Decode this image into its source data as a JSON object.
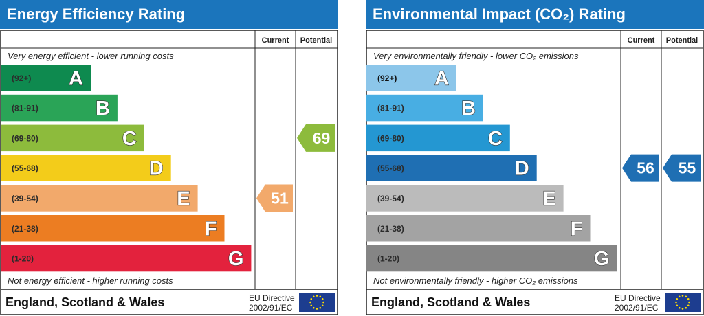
{
  "chart_data": [
    {
      "type": "bar",
      "title": "Energy Efficiency Rating",
      "header_current": "Current",
      "header_potential": "Potential",
      "top_text": "Very energy efficient - lower running costs",
      "bottom_text": "Not energy efficient - higher running costs",
      "footer_country": "England, Scotland & Wales",
      "footer_directive_line1": "EU Directive",
      "footer_directive_line2": "2002/91/EC",
      "bands": [
        {
          "letter": "A",
          "range": "(92+)",
          "color": "#0e8a4f"
        },
        {
          "letter": "B",
          "range": "(81-91)",
          "color": "#2aa457"
        },
        {
          "letter": "C",
          "range": "(69-80)",
          "color": "#8dbb3c"
        },
        {
          "letter": "D",
          "range": "(55-68)",
          "color": "#f3cc1a"
        },
        {
          "letter": "E",
          "range": "(39-54)",
          "color": "#f2a96b"
        },
        {
          "letter": "F",
          "range": "(21-38)",
          "color": "#ec7d22"
        },
        {
          "letter": "G",
          "range": "(1-20)",
          "color": "#e3223d"
        }
      ],
      "current": {
        "value": 51,
        "band": "E",
        "color": "#f2a96b"
      },
      "potential": {
        "value": 69,
        "band": "C",
        "color": "#8dbb3c"
      }
    },
    {
      "type": "bar",
      "title": "Environmental Impact (CO₂) Rating",
      "header_current": "Current",
      "header_potential": "Potential",
      "top_text": "Very environmentally friendly - lower CO₂ emissions",
      "bottom_text": "Not environmentally friendly - higher CO₂ emissions",
      "footer_country": "England, Scotland & Wales",
      "footer_directive_line1": "EU Directive",
      "footer_directive_line2": "2002/91/EC",
      "bands": [
        {
          "letter": "A",
          "range": "(92+)",
          "color": "#8cc6ea"
        },
        {
          "letter": "B",
          "range": "(81-91)",
          "color": "#48aee3"
        },
        {
          "letter": "C",
          "range": "(69-80)",
          "color": "#2497d2"
        },
        {
          "letter": "D",
          "range": "(55-68)",
          "color": "#1f6fb3"
        },
        {
          "letter": "E",
          "range": "(39-54)",
          "color": "#bbbbbb"
        },
        {
          "letter": "F",
          "range": "(21-38)",
          "color": "#a3a3a3"
        },
        {
          "letter": "G",
          "range": "(1-20)",
          "color": "#858585"
        }
      ],
      "current": {
        "value": 56,
        "band": "D",
        "color": "#1f6fb3"
      },
      "potential": {
        "value": 55,
        "band": "D",
        "color": "#1f6fb3"
      }
    }
  ],
  "colors": {
    "header_bg": "#1b75bc",
    "header_text": "#ffffff",
    "frame": "#222222",
    "eu_flag": "#1d3d8f",
    "eu_stars": "#ffdd00"
  }
}
